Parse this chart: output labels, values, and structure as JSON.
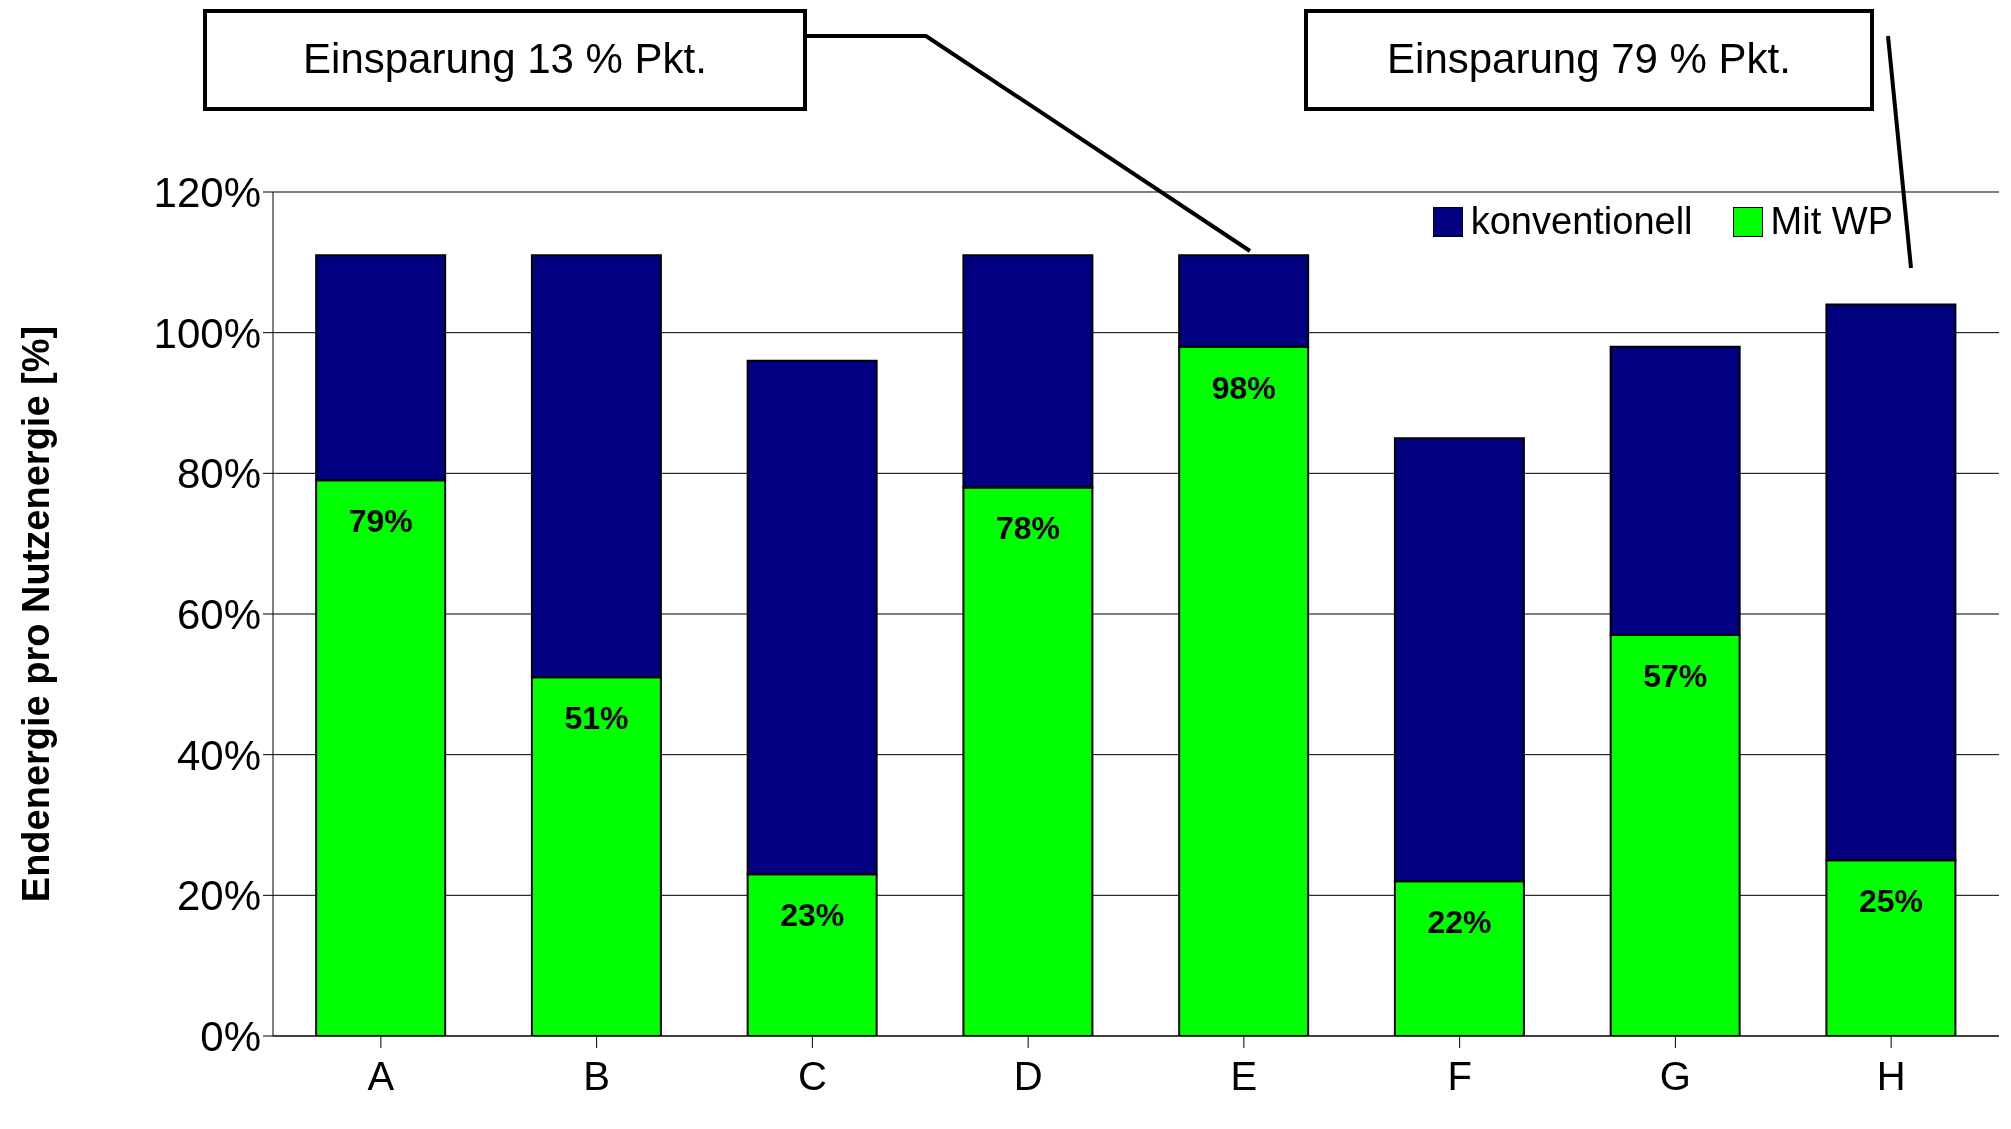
{
  "chart_data": {
    "type": "bar",
    "stacked": true,
    "ylabel": "Endenergie pro Nutzenergie [%]",
    "categories": [
      "A",
      "B",
      "C",
      "D",
      "E",
      "F",
      "G",
      "H"
    ],
    "series": [
      {
        "name": "Mit WP",
        "color": "#00ff00",
        "values": [
          79,
          51,
          23,
          78,
          98,
          22,
          57,
          25
        ],
        "value_labels": [
          "79%",
          "51%",
          "23%",
          "78%",
          "98%",
          "22%",
          "57%",
          "25%"
        ]
      },
      {
        "name": "konventionell",
        "color": "#000080",
        "values": [
          32,
          60,
          73,
          33,
          13,
          63,
          41,
          79
        ]
      }
    ],
    "ylim": [
      0,
      120
    ],
    "yticks": [
      {
        "value": 0,
        "label": "0%"
      },
      {
        "value": 20,
        "label": "20%"
      },
      {
        "value": 40,
        "label": "40%"
      },
      {
        "value": 60,
        "label": "60%"
      },
      {
        "value": 80,
        "label": "80%"
      },
      {
        "value": 100,
        "label": "100%"
      },
      {
        "value": 120,
        "label": "120%"
      }
    ],
    "grid": "y",
    "legend": "top right",
    "annotations": [
      "Einsparung 13 % Pkt.",
      "Einsparung 79 % Pkt."
    ]
  }
}
